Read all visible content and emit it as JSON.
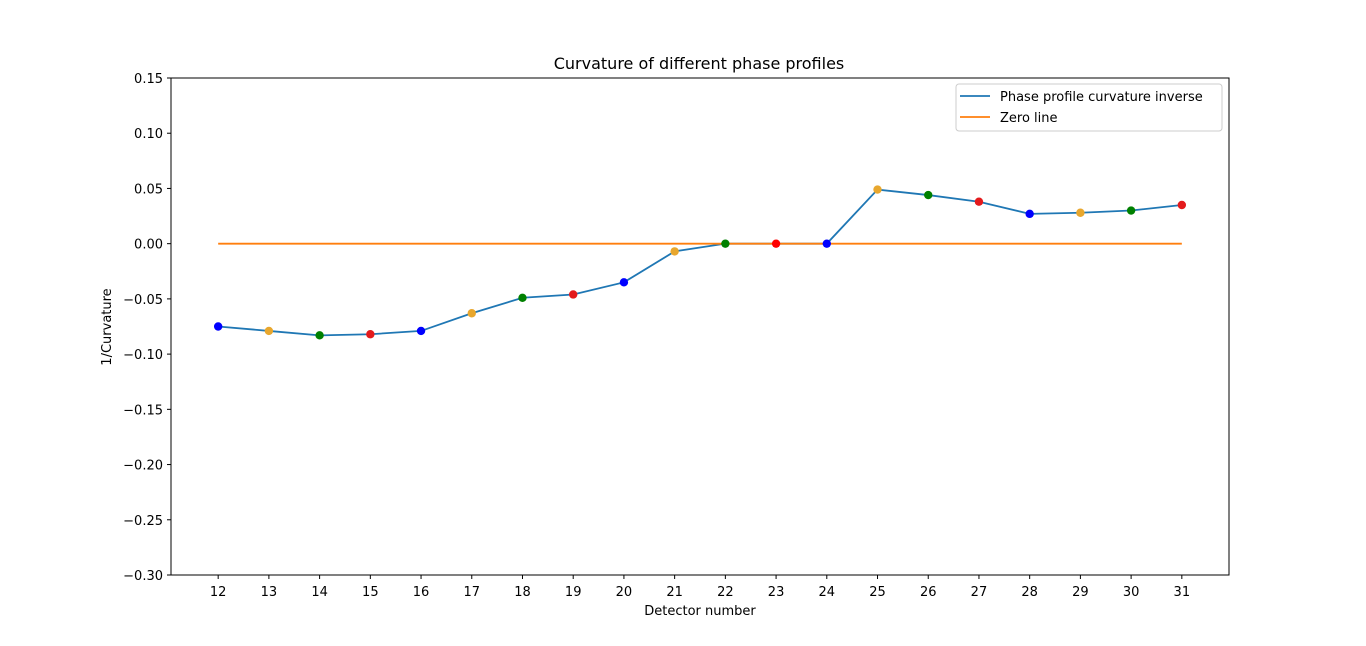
{
  "chart_data": {
    "type": "line",
    "title": "Curvature of different phase profiles",
    "xlabel": "Detector number",
    "ylabel": "1/Curvature",
    "xlim": [
      11.07,
      31.93
    ],
    "ylim": [
      -0.3,
      0.15
    ],
    "x": [
      12,
      13,
      14,
      15,
      16,
      17,
      18,
      19,
      20,
      21,
      22,
      23,
      24,
      25,
      26,
      27,
      28,
      29,
      30,
      31
    ],
    "x_tick_labels": [
      "12",
      "13",
      "14",
      "15",
      "16",
      "17",
      "18",
      "19",
      "20",
      "21",
      "22",
      "23",
      "24",
      "25",
      "26",
      "27",
      "28",
      "29",
      "30",
      "31"
    ],
    "y_ticks": [
      -0.3,
      -0.25,
      -0.2,
      -0.15,
      -0.1,
      -0.05,
      0.0,
      0.05,
      0.1,
      0.15
    ],
    "y_tick_labels": [
      "−0.30",
      "−0.25",
      "−0.20",
      "−0.15",
      "−0.10",
      "−0.05",
      "0.00",
      "0.05",
      "0.10",
      "0.15"
    ],
    "grid": false,
    "legend_placement": "top-right",
    "series": [
      {
        "name": "Phase profile curvature inverse",
        "color": "#1f77b4",
        "values": [
          -0.075,
          -0.079,
          -0.083,
          -0.082,
          -0.079,
          -0.063,
          -0.049,
          -0.046,
          -0.035,
          -0.007,
          0.0,
          0.0,
          0.0,
          0.049,
          0.044,
          0.038,
          0.027,
          0.028,
          0.03,
          0.035
        ]
      },
      {
        "name": "Zero line",
        "color": "#ff7f0e",
        "values": [
          0,
          0,
          0,
          0,
          0,
          0,
          0,
          0,
          0,
          0,
          0,
          0,
          0,
          0,
          0,
          0,
          0,
          0,
          0,
          0
        ]
      }
    ],
    "markers": {
      "colors": [
        "#0000ff",
        "#e8a72e",
        "#008000",
        "#e31a1c",
        "#0000ff",
        "#e8a72e",
        "#008000",
        "#e31a1c",
        "#0000ff",
        "#e8a72e",
        "#008000",
        "#ff0000",
        "#0000ff",
        "#e8a72e",
        "#008000",
        "#e31a1c",
        "#0000ff",
        "#e8a72e",
        "#008000",
        "#e31a1c"
      ]
    }
  }
}
